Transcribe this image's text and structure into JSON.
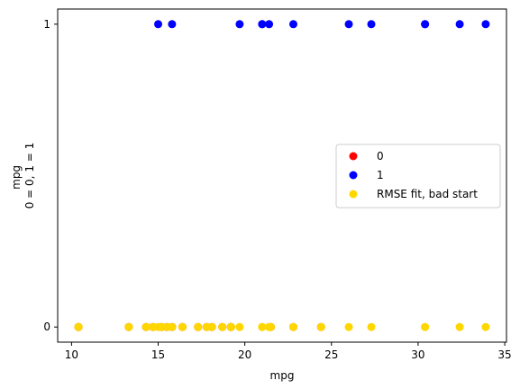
{
  "chart_data": {
    "type": "scatter",
    "xlabel": "mpg",
    "ylabel_lines": [
      "mpg",
      "0 = 0, 1 = 1"
    ],
    "xlim": [
      9.2,
      35.1
    ],
    "ylim": [
      -0.05,
      1.05
    ],
    "xticks": [
      10,
      15,
      20,
      25,
      30,
      35
    ],
    "yticks": [
      0,
      1
    ],
    "grid": false,
    "legend_position": "center-right",
    "series": [
      {
        "name": "0",
        "color": "#ff0000",
        "x": [
          18.7,
          18.1,
          14.3,
          24.4,
          22.8,
          19.2,
          17.8,
          16.4,
          17.3,
          15.2,
          10.4,
          10.4,
          14.7,
          21.5,
          15.5,
          15.2,
          13.3,
          19.2,
          15.8
        ],
        "y": [
          0,
          0,
          0,
          0,
          0,
          0,
          0,
          0,
          0,
          0,
          0,
          0,
          0,
          0,
          0,
          0,
          0,
          0,
          0
        ]
      },
      {
        "name": "1",
        "color": "#0000ff",
        "x": [
          21.0,
          21.0,
          22.8,
          32.4,
          30.4,
          33.9,
          27.3,
          26.0,
          30.4,
          15.8,
          19.7,
          15.0,
          21.4
        ],
        "y": [
          1,
          1,
          1,
          1,
          1,
          1,
          1,
          1,
          1,
          1,
          1,
          1,
          1
        ]
      },
      {
        "name": "RMSE fit, bad start",
        "color": "#ffd700",
        "x": [
          21.0,
          21.0,
          22.8,
          21.4,
          18.7,
          18.1,
          14.3,
          24.4,
          22.8,
          19.2,
          17.8,
          16.4,
          17.3,
          15.2,
          10.4,
          10.4,
          14.7,
          32.4,
          30.4,
          33.9,
          21.5,
          15.5,
          15.2,
          13.3,
          19.2,
          27.3,
          26.0,
          30.4,
          15.8,
          19.7,
          15.0,
          21.4
        ],
        "y": [
          0,
          0,
          0,
          0,
          0,
          0,
          0,
          0,
          0,
          0,
          0,
          0,
          0,
          0,
          0,
          0,
          0,
          0,
          0,
          0,
          0,
          0,
          0,
          0,
          0,
          0,
          0,
          0,
          0,
          0,
          0,
          0
        ]
      }
    ]
  }
}
